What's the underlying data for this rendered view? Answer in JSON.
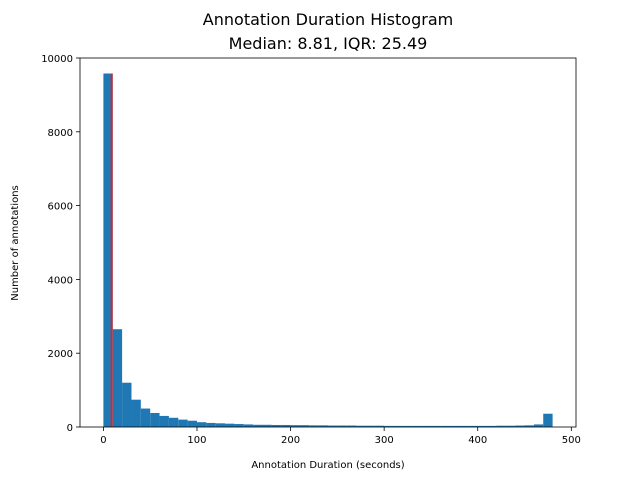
{
  "chart_data": {
    "type": "bar",
    "title": "Annotation Duration Histogram",
    "subtitle": "Median: 8.81, IQR: 25.49",
    "xlabel": "Annotation Duration (seconds)",
    "ylabel": "Number of annotations",
    "xlim": [
      -25,
      505
    ],
    "ylim": [
      0,
      10000
    ],
    "xticks": [
      0,
      100,
      200,
      300,
      400,
      500
    ],
    "yticks": [
      0,
      2000,
      4000,
      6000,
      8000,
      10000
    ],
    "bin_width": 10,
    "bin_starts": [
      0,
      10,
      20,
      30,
      40,
      50,
      60,
      70,
      80,
      90,
      100,
      110,
      120,
      130,
      140,
      150,
      160,
      170,
      180,
      190,
      200,
      210,
      220,
      230,
      240,
      250,
      260,
      270,
      280,
      290,
      300,
      310,
      320,
      330,
      340,
      350,
      360,
      370,
      380,
      390,
      400,
      410,
      420,
      430,
      440,
      450,
      460,
      470
    ],
    "values": [
      9580,
      2650,
      1200,
      740,
      500,
      380,
      300,
      250,
      200,
      170,
      130,
      110,
      100,
      90,
      80,
      70,
      60,
      60,
      55,
      55,
      50,
      50,
      45,
      45,
      40,
      40,
      40,
      35,
      35,
      35,
      30,
      30,
      30,
      30,
      30,
      30,
      30,
      30,
      30,
      30,
      30,
      30,
      35,
      35,
      40,
      45,
      70,
      360
    ],
    "median_line": 8.81,
    "colors": {
      "bars": "#1f77b4",
      "median": "#d62728"
    },
    "grid": false,
    "legend": "none"
  }
}
